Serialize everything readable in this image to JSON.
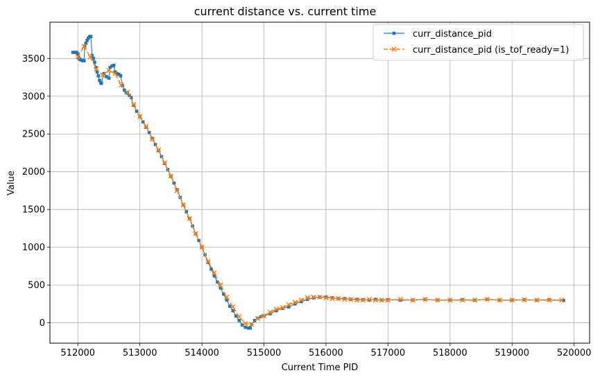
{
  "chart_data": {
    "type": "line",
    "title": "current distance vs. current time",
    "xlabel": "Current Time PID",
    "ylabel": "Value",
    "xlim": [
      511550,
      520250
    ],
    "ylim": [
      -270,
      3980
    ],
    "xticks": [
      512000,
      513000,
      514000,
      515000,
      516000,
      517000,
      518000,
      519000,
      520000
    ],
    "yticks": [
      0,
      500,
      1000,
      1500,
      2000,
      2500,
      3000,
      3500
    ],
    "grid": true,
    "legend_position": "upper right",
    "series": [
      {
        "name": "curr_distance_pid",
        "color": "#1f77b4",
        "marker": "square",
        "linestyle": "solid",
        "x": [
          511920,
          511950,
          511980,
          512000,
          512010,
          512030,
          512050,
          512080,
          512100,
          512110,
          512130,
          512150,
          512170,
          512190,
          512210,
          512230,
          512250,
          512270,
          512290,
          512310,
          512330,
          512350,
          512370,
          512380,
          512420,
          512460,
          512500,
          512520,
          512550,
          512580,
          512600,
          512630,
          512660,
          512690,
          512720,
          512750,
          512780,
          512800,
          512830,
          512860,
          512900,
          512950,
          513000,
          513050,
          513100,
          513150,
          513200,
          513250,
          513300,
          513350,
          513400,
          513450,
          513500,
          513550,
          513600,
          513650,
          513700,
          513750,
          513800,
          513850,
          513900,
          513950,
          514000,
          514050,
          514100,
          514150,
          514200,
          514250,
          514300,
          514350,
          514400,
          514450,
          514500,
          514550,
          514600,
          514650,
          514700,
          514750,
          514780,
          514800,
          514850,
          514900,
          514950,
          515000,
          515100,
          515200,
          515300,
          515400,
          515500,
          515600,
          515700,
          515800,
          515900,
          516000,
          516100,
          516200,
          516300,
          516400,
          516500,
          516600,
          516700,
          516800,
          516900,
          517000,
          517200,
          517400,
          517600,
          517800,
          518000,
          518200,
          518400,
          518600,
          518800,
          519000,
          519200,
          519400,
          519600,
          519830
        ],
        "y": [
          3580,
          3580,
          3580,
          3560,
          3510,
          3490,
          3480,
          3470,
          3470,
          3660,
          3700,
          3740,
          3770,
          3790,
          3790,
          3540,
          3500,
          3450,
          3380,
          3320,
          3270,
          3210,
          3180,
          3170,
          3300,
          3260,
          3240,
          3380,
          3400,
          3410,
          3320,
          3300,
          3290,
          3270,
          3140,
          3080,
          3050,
          3040,
          3010,
          2980,
          2880,
          2800,
          2730,
          2660,
          2590,
          2520,
          2440,
          2360,
          2280,
          2200,
          2110,
          2030,
          1940,
          1850,
          1760,
          1660,
          1560,
          1470,
          1380,
          1280,
          1180,
          1090,
          1000,
          900,
          800,
          710,
          620,
          540,
          460,
          380,
          300,
          220,
          160,
          90,
          30,
          -30,
          -60,
          -70,
          -70,
          -20,
          30,
          60,
          80,
          90,
          120,
          160,
          190,
          210,
          250,
          280,
          310,
          330,
          340,
          340,
          330,
          320,
          320,
          310,
          310,
          305,
          300,
          310,
          300,
          305,
          300,
          300,
          310,
          300,
          300,
          305,
          300,
          310,
          300,
          300,
          305,
          300,
          305,
          295
        ]
      },
      {
        "name": "curr_distance_pid (is_tof_ready=1)",
        "color": "#ff7f0e",
        "marker": "x",
        "linestyle": "dashed",
        "x": [
          512000,
          512100,
          512200,
          512300,
          512400,
          512500,
          512600,
          512700,
          512800,
          512900,
          513000,
          513100,
          513200,
          513300,
          513400,
          513500,
          513600,
          513700,
          513800,
          513900,
          514000,
          514100,
          514200,
          514300,
          514400,
          514500,
          514600,
          514700,
          514800,
          514900,
          515000,
          515100,
          515200,
          515300,
          515400,
          515500,
          515600,
          515700,
          515800,
          515900,
          516000,
          516100,
          516200,
          516300,
          516400,
          516500,
          516600,
          516700,
          516800,
          516900,
          517000,
          517200,
          517400,
          517600,
          517800,
          518000,
          518200,
          518400,
          518600,
          518800,
          519000,
          519200,
          519400,
          519600,
          519800
        ],
        "y": [
          3520,
          3660,
          3520,
          3360,
          3280,
          3340,
          3300,
          3150,
          3050,
          2890,
          2730,
          2600,
          2430,
          2290,
          2120,
          1940,
          1750,
          1560,
          1380,
          1180,
          1000,
          810,
          660,
          500,
          340,
          210,
          80,
          -10,
          -20,
          60,
          90,
          140,
          180,
          200,
          240,
          270,
          300,
          330,
          340,
          340,
          330,
          320,
          320,
          310,
          310,
          300,
          300,
          310,
          300,
          300,
          300,
          310,
          300,
          310,
          300,
          300,
          300,
          300,
          310,
          300,
          300,
          305,
          300,
          300,
          300
        ]
      }
    ]
  }
}
